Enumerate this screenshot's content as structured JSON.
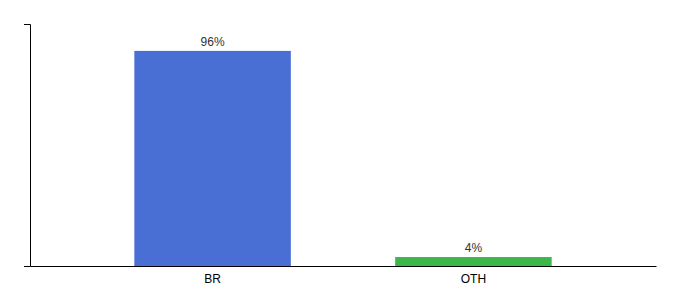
{
  "chart_data": {
    "type": "bar",
    "categories": [
      "BR",
      "OTH"
    ],
    "values": [
      96,
      4
    ],
    "colors": [
      "#4A6FD4",
      "#3CB84A"
    ],
    "value_labels": [
      "96%",
      "4%"
    ],
    "data_labels": true,
    "ylim": [
      0,
      108
    ],
    "tick_labels": "x"
  }
}
